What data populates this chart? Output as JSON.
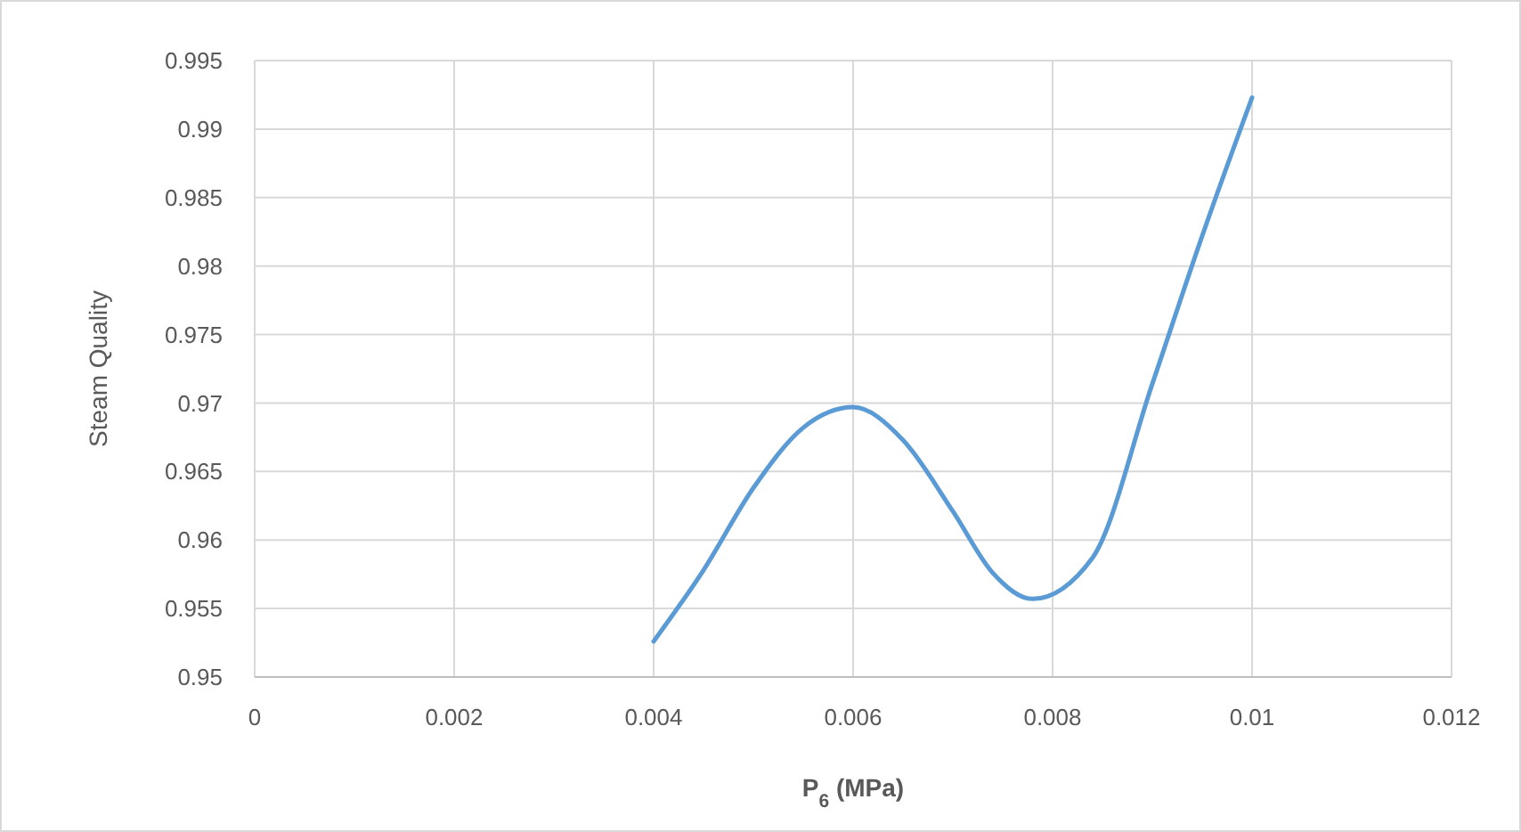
{
  "chart_data": {
    "type": "line",
    "xlabel": "P$_{6}$ (MPa)",
    "ylabel": "Steam Quality",
    "x": [
      0.004,
      0.0045,
      0.005,
      0.0055,
      0.006,
      0.0065,
      0.007,
      0.0074,
      0.0078,
      0.0084,
      0.009,
      0.0095,
      0.01
    ],
    "series": [
      {
        "color": "#5b9bd5",
        "values": [
          0.9526,
          0.9578,
          0.9638,
          0.9682,
          0.9697,
          0.9673,
          0.9621,
          0.9576,
          0.9557,
          0.9587,
          0.9714,
          0.9822,
          0.9923
        ]
      }
    ],
    "xlim": [
      0,
      0.012
    ],
    "xticks": [
      0,
      0.002,
      0.004,
      0.006,
      0.008,
      0.01,
      0.012
    ],
    "ylim": [
      0.95,
      0.995
    ],
    "yticks": [
      0.95,
      0.955,
      0.96,
      0.965,
      0.97,
      0.975,
      0.98,
      0.985,
      0.99,
      0.995
    ],
    "grid": true,
    "marker": "none",
    "line_style": "solid"
  }
}
